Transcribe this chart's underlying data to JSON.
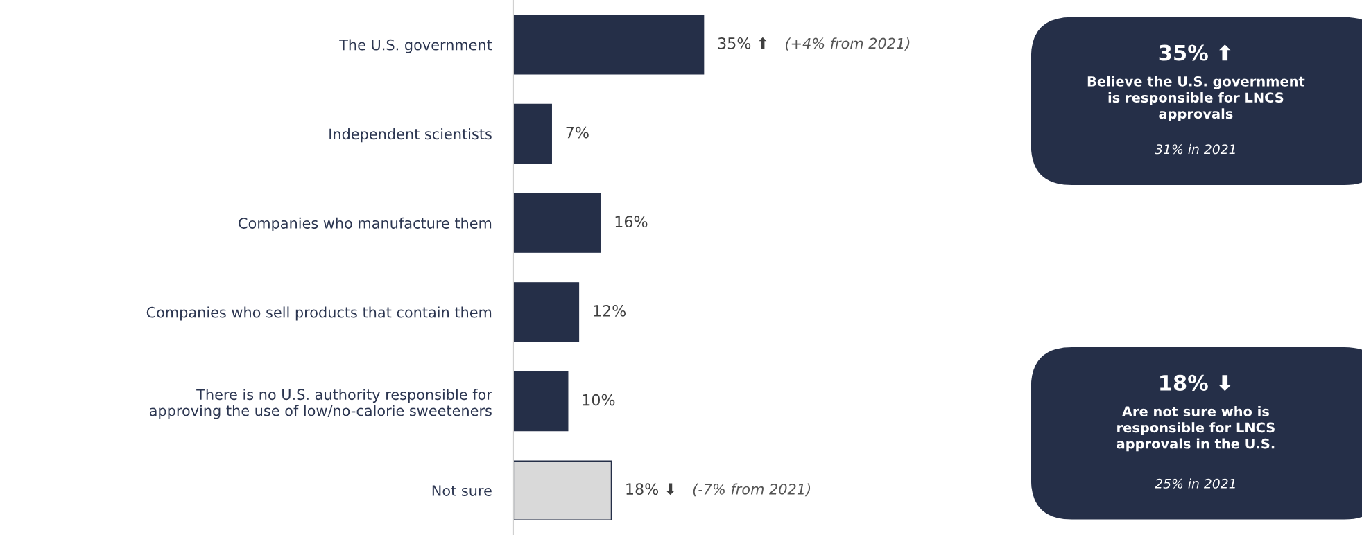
{
  "chart_data": {
    "type": "bar",
    "orientation": "horizontal",
    "categories": [
      "The U.S. government",
      "Independent scientists",
      "Companies who manufacture them",
      "Companies who sell products that contain them",
      "There is no U.S. authority responsible for\napproving the use of low/no-calorie sweeteners",
      "Not sure"
    ],
    "values": [
      35,
      7,
      16,
      12,
      10,
      18
    ],
    "colors": [
      "#252f48",
      "#252f48",
      "#252f48",
      "#252f48",
      "#252f48",
      "#d9d9d9"
    ],
    "value_labels": [
      "35% ⬆",
      "7%",
      "16%",
      "12%",
      "10%",
      "18% ⬇"
    ],
    "annotations": [
      "(+4% from 2021)",
      "(-7% from 2021)",
      "35% ⬆",
      "Believe the U.S. government\nis responsible for LNCS\napprovals",
      "31% in 2021",
      "18% ⬇",
      "Are not sure who is\nresponsible for LNCS\napprovals in the U.S.",
      "25% in 2021"
    ],
    "legend": false,
    "grid": false
  }
}
